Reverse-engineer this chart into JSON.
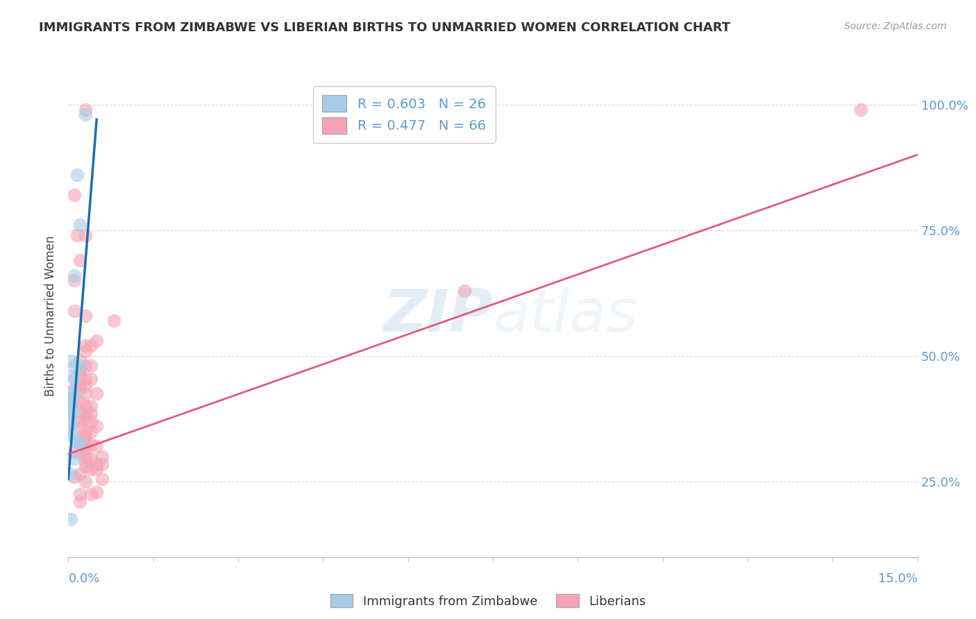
{
  "title": "IMMIGRANTS FROM ZIMBABWE VS LIBERIAN BIRTHS TO UNMARRIED WOMEN CORRELATION CHART",
  "source": "Source: ZipAtlas.com",
  "ylabel": "Births to Unmarried Women",
  "yaxis_labels": [
    "25.0%",
    "50.0%",
    "75.0%",
    "100.0%"
  ],
  "yaxis_values": [
    0.25,
    0.5,
    0.75,
    1.0
  ],
  "legend_color1": "#a8cce8",
  "legend_color2": "#f4a3b5",
  "trendline_color1": "#1a6faf",
  "trendline_color2": "#e05a7a",
  "scatter_color1": "#a8cce8",
  "scatter_color2": "#f4a3b5",
  "background_color": "#ffffff",
  "x_min": 0.0,
  "x_max": 0.15,
  "y_min": 0.1,
  "y_max": 1.06,
  "blue_points": [
    [
      0.003,
      0.98
    ],
    [
      0.0015,
      0.86
    ],
    [
      0.002,
      0.76
    ],
    [
      0.001,
      0.66
    ],
    [
      0.0005,
      0.49
    ],
    [
      0.001,
      0.48
    ],
    [
      0.002,
      0.48
    ],
    [
      0.0005,
      0.46
    ],
    [
      0.001,
      0.455
    ],
    [
      0.0005,
      0.43
    ],
    [
      0.001,
      0.425
    ],
    [
      0.0005,
      0.415
    ],
    [
      0.0,
      0.405
    ],
    [
      0.0005,
      0.4
    ],
    [
      0.001,
      0.39
    ],
    [
      0.0005,
      0.385
    ],
    [
      0.0005,
      0.375
    ],
    [
      0.0005,
      0.365
    ],
    [
      0.0,
      0.355
    ],
    [
      0.0005,
      0.345
    ],
    [
      0.001,
      0.335
    ],
    [
      0.0015,
      0.33
    ],
    [
      0.002,
      0.325
    ],
    [
      0.001,
      0.295
    ],
    [
      0.0005,
      0.265
    ],
    [
      0.0005,
      0.175
    ]
  ],
  "pink_points": [
    [
      0.003,
      0.99
    ],
    [
      0.14,
      0.99
    ],
    [
      0.001,
      0.82
    ],
    [
      0.0015,
      0.74
    ],
    [
      0.003,
      0.74
    ],
    [
      0.002,
      0.69
    ],
    [
      0.001,
      0.65
    ],
    [
      0.07,
      0.63
    ],
    [
      0.001,
      0.59
    ],
    [
      0.003,
      0.58
    ],
    [
      0.008,
      0.57
    ],
    [
      0.005,
      0.53
    ],
    [
      0.003,
      0.52
    ],
    [
      0.004,
      0.52
    ],
    [
      0.003,
      0.51
    ],
    [
      0.002,
      0.49
    ],
    [
      0.003,
      0.48
    ],
    [
      0.004,
      0.48
    ],
    [
      0.002,
      0.47
    ],
    [
      0.002,
      0.46
    ],
    [
      0.003,
      0.455
    ],
    [
      0.004,
      0.455
    ],
    [
      0.002,
      0.445
    ],
    [
      0.003,
      0.44
    ],
    [
      0.001,
      0.435
    ],
    [
      0.002,
      0.435
    ],
    [
      0.003,
      0.425
    ],
    [
      0.005,
      0.425
    ],
    [
      0.001,
      0.415
    ],
    [
      0.002,
      0.41
    ],
    [
      0.003,
      0.4
    ],
    [
      0.004,
      0.4
    ],
    [
      0.002,
      0.39
    ],
    [
      0.003,
      0.385
    ],
    [
      0.004,
      0.385
    ],
    [
      0.003,
      0.375
    ],
    [
      0.002,
      0.37
    ],
    [
      0.004,
      0.37
    ],
    [
      0.002,
      0.36
    ],
    [
      0.005,
      0.36
    ],
    [
      0.003,
      0.35
    ],
    [
      0.004,
      0.35
    ],
    [
      0.003,
      0.34
    ],
    [
      0.002,
      0.335
    ],
    [
      0.003,
      0.325
    ],
    [
      0.004,
      0.325
    ],
    [
      0.005,
      0.32
    ],
    [
      0.003,
      0.315
    ],
    [
      0.001,
      0.31
    ],
    [
      0.002,
      0.305
    ],
    [
      0.006,
      0.3
    ],
    [
      0.003,
      0.3
    ],
    [
      0.004,
      0.295
    ],
    [
      0.003,
      0.29
    ],
    [
      0.005,
      0.285
    ],
    [
      0.006,
      0.285
    ],
    [
      0.003,
      0.28
    ],
    [
      0.004,
      0.275
    ],
    [
      0.002,
      0.265
    ],
    [
      0.001,
      0.26
    ],
    [
      0.006,
      0.255
    ],
    [
      0.003,
      0.25
    ],
    [
      0.005,
      0.275
    ],
    [
      0.002,
      0.225
    ],
    [
      0.004,
      0.225
    ],
    [
      0.002,
      0.21
    ],
    [
      0.005,
      0.23
    ]
  ],
  "blue_trend_x": [
    0.0,
    0.005
  ],
  "blue_trend_y": [
    0.255,
    0.97
  ],
  "pink_trend_x": [
    0.0,
    0.15
  ],
  "pink_trend_y": [
    0.305,
    0.9
  ]
}
